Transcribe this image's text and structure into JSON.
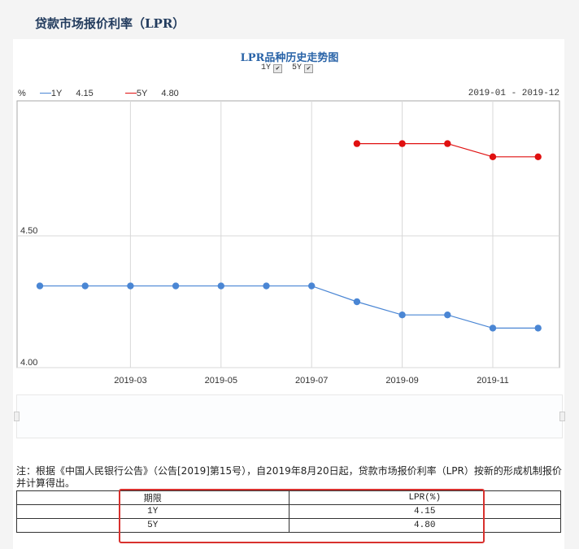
{
  "page": {
    "title": "贷款市场报价利率（LPR）"
  },
  "chart": {
    "title": "LPR品种历史走势图",
    "toggles": [
      {
        "label": "1Y",
        "checked": true
      },
      {
        "label": "5Y",
        "checked": true
      }
    ],
    "unit": "%",
    "legend": [
      {
        "name": "1Y",
        "value": "4.15",
        "color": "#4a86d4"
      },
      {
        "name": "5Y",
        "value": "4.80",
        "color": "#e01010"
      }
    ],
    "range_label": "2019-01 - 2019-12"
  },
  "chart_data": {
    "type": "line",
    "title": "LPR品种历史走势图",
    "xlabel": "",
    "ylabel": "%",
    "x": [
      "2019-01",
      "2019-02",
      "2019-03",
      "2019-04",
      "2019-05",
      "2019-06",
      "2019-07",
      "2019-08",
      "2019-09",
      "2019-10",
      "2019-11",
      "2019-12"
    ],
    "x_tick_labels": [
      "2019-03",
      "2019-05",
      "2019-07",
      "2019-09",
      "2019-11"
    ],
    "y_tick_labels": [
      "4.00",
      "4.50"
    ],
    "ylim": [
      4.0,
      4.93
    ],
    "grid": true,
    "legend_position": "top-left",
    "series": [
      {
        "name": "1Y",
        "color": "#4a86d4",
        "values": [
          4.31,
          4.31,
          4.31,
          4.31,
          4.31,
          4.31,
          4.31,
          4.25,
          4.2,
          4.2,
          4.15,
          4.15
        ]
      },
      {
        "name": "5Y",
        "color": "#e01010",
        "values": [
          null,
          null,
          null,
          null,
          null,
          null,
          null,
          4.85,
          4.85,
          4.85,
          4.8,
          4.8
        ]
      }
    ]
  },
  "note": "注：根据《中国人民银行公告》（公告[2019]第15号），自2019年8月20日起，贷款市场报价利率（LPR）按新的形成机制报价并计算得出。",
  "table": {
    "headers": [
      "期限",
      "LPR(%)"
    ],
    "rows": [
      [
        "1Y",
        "4.15"
      ],
      [
        "5Y",
        "4.80"
      ]
    ]
  }
}
